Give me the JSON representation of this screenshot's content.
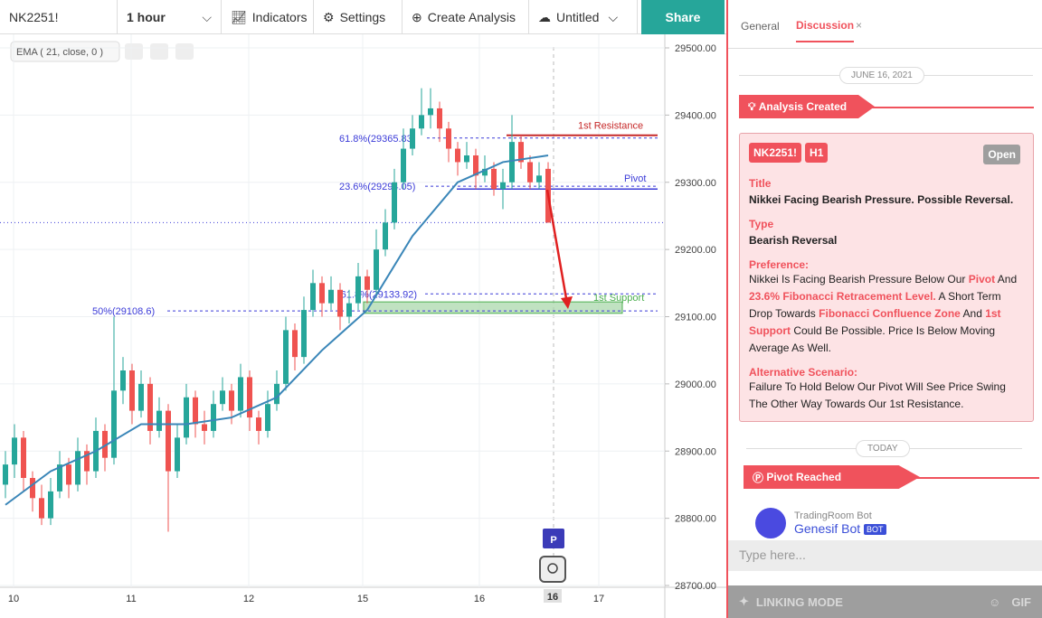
{
  "toolbar": {
    "symbol": "NK2251!",
    "interval": "1 hour",
    "indicators": "Indicators",
    "settings": "Settings",
    "create": "Create Analysis",
    "layout": "Untitled",
    "share": "Share"
  },
  "chart": {
    "indicator_label": "EMA ( 21, close, 0 )",
    "ylim": [
      28700,
      29500
    ],
    "yticks": [
      {
        "value": 29500,
        "label": "29500.00"
      },
      {
        "value": 29400,
        "label": "29400.00"
      },
      {
        "value": 29300,
        "label": "29300.00"
      },
      {
        "value": 29200,
        "label": "29200.00"
      },
      {
        "value": 29100,
        "label": "29100.00"
      },
      {
        "value": 29000,
        "label": "29000.00"
      },
      {
        "value": 28900,
        "label": "28900.00"
      },
      {
        "value": 28800,
        "label": "28800.00"
      },
      {
        "value": 28700,
        "label": "28700.00"
      }
    ],
    "dates": [
      "10",
      "11",
      "12",
      "15",
      "16",
      "17"
    ],
    "current_date": "16",
    "candles": [
      [
        28850,
        28900,
        28830,
        28880
      ],
      [
        28880,
        28940,
        28860,
        28920
      ],
      [
        28920,
        28930,
        28840,
        28860
      ],
      [
        28860,
        28870,
        28810,
        28830
      ],
      [
        28830,
        28850,
        28790,
        28800
      ],
      [
        28800,
        28860,
        28790,
        28840
      ],
      [
        28840,
        28900,
        28830,
        28880
      ],
      [
        28880,
        28890,
        28830,
        28850
      ],
      [
        28850,
        28920,
        28840,
        28900
      ],
      [
        28900,
        28910,
        28850,
        28870
      ],
      [
        28870,
        28950,
        28860,
        28930
      ],
      [
        28930,
        28940,
        28870,
        28890
      ],
      [
        28890,
        29100,
        28880,
        28990
      ],
      [
        28990,
        29040,
        28970,
        29020
      ],
      [
        29020,
        29030,
        28940,
        28960
      ],
      [
        28960,
        29020,
        28950,
        29000
      ],
      [
        29000,
        29010,
        28910,
        28930
      ],
      [
        28930,
        28980,
        28920,
        28960
      ],
      [
        28960,
        28970,
        28780,
        28870
      ],
      [
        28870,
        28940,
        28860,
        28920
      ],
      [
        28920,
        29000,
        28910,
        28980
      ],
      [
        28980,
        28990,
        28920,
        28940
      ],
      [
        28940,
        28960,
        28910,
        28930
      ],
      [
        28930,
        28990,
        28920,
        28970
      ],
      [
        28970,
        29010,
        28960,
        28990
      ],
      [
        28990,
        29000,
        28940,
        28960
      ],
      [
        28960,
        29030,
        28950,
        29010
      ],
      [
        29010,
        29020,
        28930,
        28950
      ],
      [
        28950,
        28960,
        28910,
        28930
      ],
      [
        28930,
        28990,
        28920,
        28970
      ],
      [
        28970,
        29020,
        28960,
        29000
      ],
      [
        29000,
        29100,
        28990,
        29080
      ],
      [
        29080,
        29090,
        29020,
        29040
      ],
      [
        29040,
        29130,
        29030,
        29110
      ],
      [
        29110,
        29170,
        29100,
        29150
      ],
      [
        29150,
        29160,
        29100,
        29120
      ],
      [
        29120,
        29160,
        29110,
        29140
      ],
      [
        29140,
        29150,
        29080,
        29100
      ],
      [
        29100,
        29140,
        29090,
        29120
      ],
      [
        29120,
        29180,
        29110,
        29160
      ],
      [
        29160,
        29170,
        29120,
        29140
      ],
      [
        29140,
        29230,
        29130,
        29200
      ],
      [
        29200,
        29260,
        29190,
        29240
      ],
      [
        29240,
        29320,
        29230,
        29300
      ],
      [
        29300,
        29380,
        29290,
        29350
      ],
      [
        29350,
        29400,
        29340,
        29380
      ],
      [
        29380,
        29440,
        29370,
        29400
      ],
      [
        29400,
        29440,
        29380,
        29410
      ],
      [
        29410,
        29420,
        29360,
        29380
      ],
      [
        29380,
        29390,
        29330,
        29350
      ],
      [
        29350,
        29360,
        29310,
        29330
      ],
      [
        29330,
        29360,
        29320,
        29340
      ],
      [
        29340,
        29350,
        29290,
        29310
      ],
      [
        29310,
        29340,
        29300,
        29320
      ],
      [
        29320,
        29330,
        29280,
        29290
      ],
      [
        29290,
        29320,
        29260,
        29300
      ],
      [
        29300,
        29400,
        29290,
        29360
      ],
      [
        29360,
        29370,
        29320,
        29330
      ],
      [
        29330,
        29340,
        29290,
        29300
      ],
      [
        29300,
        29330,
        29290,
        29310
      ],
      [
        29320,
        29330,
        29240,
        29240
      ]
    ],
    "ema": {
      "x": [
        0,
        5,
        10,
        15,
        20,
        25,
        30,
        35,
        40,
        45,
        50,
        55,
        60
      ],
      "values": [
        28820,
        28870,
        28900,
        28940,
        28940,
        28950,
        28980,
        29050,
        29110,
        29220,
        29300,
        29330,
        29340
      ]
    },
    "fib": [
      {
        "label": "61.8%(29365.83)",
        "value": 29365.83
      },
      {
        "label": "23.6%(29294.05)",
        "value": 29294.05
      },
      {
        "label": "-61.8%(29133.92)",
        "value": 29133.92
      },
      {
        "label": "50%(29108.6)",
        "value": 29108.6
      }
    ],
    "resistance": {
      "label": "1st Resistance",
      "value": 29370
    },
    "pivot": {
      "label": "Pivot",
      "value": 29290
    },
    "support": {
      "label": "1st Support",
      "values": [
        29105,
        29122
      ]
    },
    "last_price": 29240,
    "marker": "P"
  },
  "panel": {
    "tabs": [
      "General",
      "Discussion"
    ],
    "close": "×",
    "date": "JUNE 16, 2021",
    "banner1": "Analysis Created",
    "card": {
      "symbol": "NK2251!",
      "tf": "H1",
      "status": "Open",
      "title_h": "Title",
      "title": "Nikkei Facing Bearish Pressure. Possible Reversal.",
      "type_h": "Type",
      "type": "Bearish Reversal",
      "pref_h": "Preference:",
      "pref": [
        {
          "text": "Nikkei Is Facing Bearish Pressure Below Our ",
          "hl": false
        },
        {
          "text": "Pivot",
          "hl": true
        },
        {
          "text": " And ",
          "hl": false
        },
        {
          "text": "23.6% Fibonacci Retracement Level.",
          "hl": true
        },
        {
          "text": " A Short Term Drop Towards ",
          "hl": false
        },
        {
          "text": "Fibonacci Confluence Zone",
          "hl": true
        },
        {
          "text": " And ",
          "hl": false
        },
        {
          "text": "1st Support",
          "hl": true
        },
        {
          "text": " Could Be Possible. Price Is Below Moving Average As Well.",
          "hl": false
        }
      ],
      "alt_h": "Alternative Scenario:",
      "alt": "Failure To Hold Below Our Pivot Will See Price Swing The Other Way Towards Our 1st Resistance."
    },
    "today": "TODAY",
    "banner2": "Pivot Reached",
    "bot_org": "TradingRoom Bot",
    "bot_name": "Genesif Bot",
    "bot_badge": "BOT",
    "input": "Type here...",
    "linking": "LINKING MODE",
    "gif": "GIF"
  }
}
